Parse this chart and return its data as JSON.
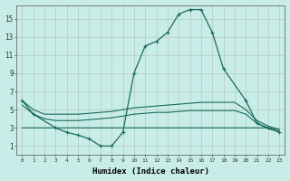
{
  "color": "#1a6b5a",
  "bg_color": "#c8ede8",
  "grid_color": "#b8c8c0",
  "xlabel": "Humidex (Indice chaleur)",
  "xlim": [
    -0.5,
    23.5
  ],
  "ylim": [
    0,
    16.5
  ],
  "xticks": [
    0,
    1,
    2,
    3,
    4,
    5,
    6,
    7,
    8,
    9,
    10,
    11,
    12,
    13,
    14,
    15,
    16,
    17,
    18,
    19,
    20,
    21,
    22,
    23
  ],
  "yticks": [
    1,
    3,
    5,
    7,
    9,
    11,
    13,
    15
  ],
  "main_x": [
    0,
    1,
    3,
    4,
    5,
    6,
    7,
    8,
    9,
    10,
    11,
    12,
    13,
    14,
    15,
    16,
    17,
    18,
    20,
    21,
    22,
    23
  ],
  "main_y": [
    6,
    4.5,
    3,
    2.5,
    2.2,
    1.8,
    1.0,
    1.0,
    2.5,
    9.0,
    12.0,
    12.5,
    13.5,
    15.5,
    16.0,
    16.0,
    13.5,
    9.5,
    6.0,
    3.5,
    3.0,
    2.5
  ],
  "line_top_x": [
    0,
    1,
    2,
    3,
    4,
    5,
    6,
    7,
    8,
    9,
    10,
    11,
    12,
    13,
    14,
    15,
    16,
    17,
    18,
    19,
    20,
    21,
    22,
    23
  ],
  "line_top_y": [
    6.0,
    5.0,
    4.5,
    4.5,
    4.5,
    4.5,
    4.6,
    4.7,
    4.8,
    5.0,
    5.2,
    5.3,
    5.4,
    5.5,
    5.6,
    5.7,
    5.8,
    5.8,
    5.8,
    5.8,
    5.0,
    3.8,
    3.2,
    2.8
  ],
  "line_mid_x": [
    0,
    1,
    2,
    3,
    4,
    5,
    6,
    7,
    8,
    9,
    10,
    11,
    12,
    13,
    14,
    15,
    16,
    17,
    18,
    19,
    20,
    21,
    22,
    23
  ],
  "line_mid_y": [
    5.5,
    4.5,
    4.0,
    3.8,
    3.8,
    3.8,
    3.9,
    4.0,
    4.1,
    4.3,
    4.5,
    4.6,
    4.7,
    4.7,
    4.8,
    4.9,
    4.9,
    4.9,
    4.9,
    4.9,
    4.5,
    3.5,
    2.9,
    2.6
  ],
  "line_bot_x": [
    0,
    1,
    2,
    3,
    4,
    5,
    6,
    7,
    8,
    9,
    10,
    11,
    12,
    13,
    14,
    15,
    16,
    17,
    18,
    19,
    20,
    21,
    22,
    23
  ],
  "line_bot_y": [
    3.0,
    3.0,
    3.0,
    3.0,
    3.0,
    3.0,
    3.0,
    3.0,
    3.0,
    3.0,
    3.0,
    3.0,
    3.0,
    3.0,
    3.0,
    3.0,
    3.0,
    3.0,
    3.0,
    3.0,
    3.0,
    3.0,
    3.0,
    2.8
  ]
}
